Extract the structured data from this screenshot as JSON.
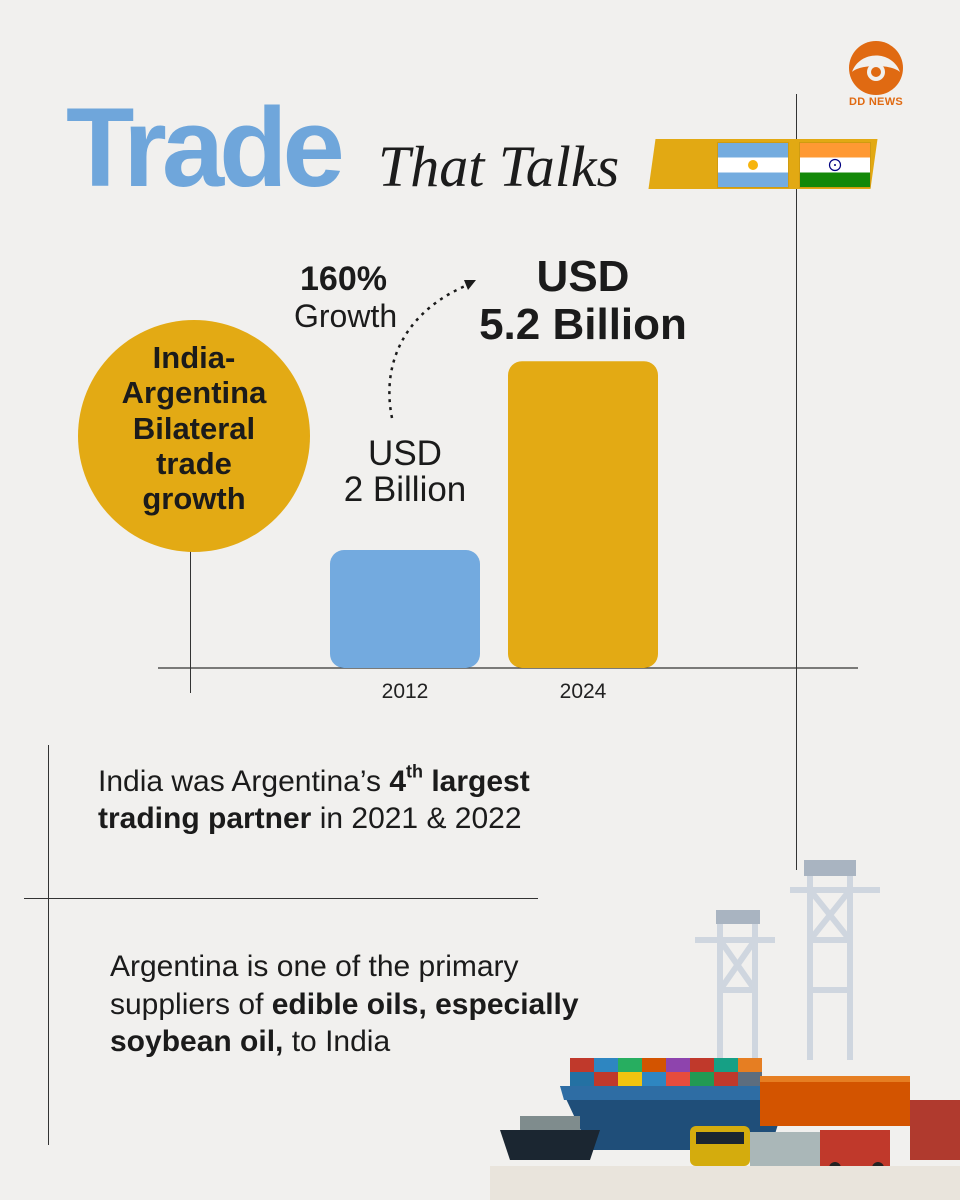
{
  "logo": {
    "text": "DD NEWS",
    "icon": "dd-news-logo-icon",
    "color": "#e06a12"
  },
  "header": {
    "title_main": "Trade",
    "title_sub": "That Talks",
    "flags": [
      "argentina-flag-icon",
      "india-flag-icon"
    ]
  },
  "badge": {
    "lines": [
      "India-",
      "Argentina",
      "Bilateral",
      "trade",
      "growth"
    ]
  },
  "growth": {
    "percent": "160%",
    "word": "Growth"
  },
  "value_labels": {
    "v2012": {
      "line1": "USD",
      "line2": "2 Billion"
    },
    "v2024": {
      "line1": "USD",
      "line2": "5.2 Billion"
    }
  },
  "chart_data": {
    "type": "bar",
    "categories": [
      "2012",
      "2024"
    ],
    "values": [
      2,
      5.2
    ],
    "unit": "USD Billion",
    "colors": [
      "#73aadf",
      "#e3aa14"
    ],
    "annotation": "160% Growth",
    "title": "",
    "xlabel": "",
    "ylabel": ""
  },
  "fact1": {
    "pre": "India was Argentina’s ",
    "bold1": "4",
    "sup": "th",
    "bold2": " largest",
    "bold3": "trading partner",
    "post": " in 2021 & 2022"
  },
  "fact2": {
    "line1": "Argentina is one of the primary",
    "pre2": "suppliers of ",
    "bold2": "edible oils, especially",
    "bold3": "soybean oil,",
    "post3": " to India"
  },
  "colors": {
    "blue": "#6fa6db",
    "gold": "#e3aa14",
    "background": "#f1f0ee"
  }
}
